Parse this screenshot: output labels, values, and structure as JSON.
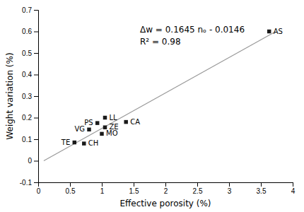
{
  "chart_data": {
    "type": "scatter",
    "xlabel": "Effective porosity (%)",
    "ylabel": "Weight variation (%)",
    "series": [
      {
        "type": "scatter",
        "marker": "square",
        "color": "#1a1a1a",
        "labels": [
          "TE",
          "CH",
          "VG",
          "PS",
          "MO",
          "ZE",
          "LL",
          "CA",
          "AS"
        ],
        "x": [
          0.57,
          0.72,
          0.8,
          0.93,
          1.0,
          1.05,
          1.05,
          1.38,
          3.63
        ],
        "values": [
          0.085,
          0.08,
          0.145,
          0.175,
          0.125,
          0.155,
          0.2,
          0.18,
          0.6
        ]
      },
      {
        "type": "line",
        "color": "#999999",
        "x": [
          0.088,
          3.72
        ],
        "values": [
          -0.000124,
          0.59734
        ]
      }
    ],
    "annotations": [
      "Δw = 0.1645 nₒ - 0.0146",
      "R² = 0.98"
    ],
    "xlim": [
      0,
      4
    ],
    "ylim": [
      -0.1,
      0.7
    ],
    "xticks": [
      0,
      0.5,
      1,
      1.5,
      2,
      2.5,
      3,
      3.5,
      4
    ],
    "yticks": [
      -0.1,
      0,
      0.1,
      0.2,
      0.3,
      0.4,
      0.5,
      0.6,
      0.7
    ],
    "grid": false
  }
}
